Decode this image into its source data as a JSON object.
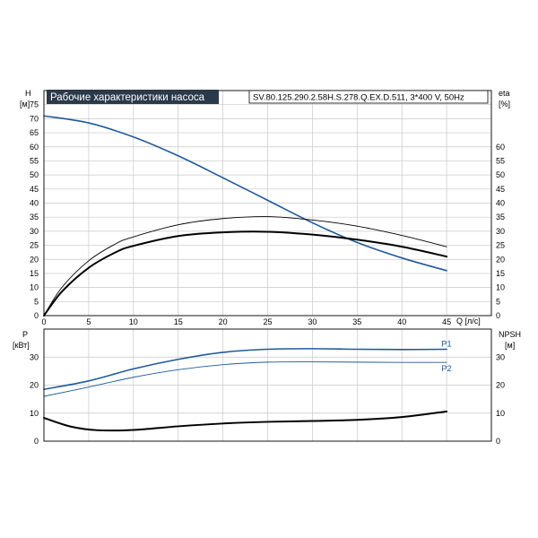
{
  "chart_data": [
    {
      "type": "line",
      "title": "Рабочие характеристики насоса",
      "model": "SV.80.125.290.2.58H.S.278.Q.EX.D.511, 3*400 V, 50Hz",
      "xlabel": "Q [л/с]",
      "ylabel_left": "H",
      "ylabel_left_unit": "[м]",
      "ylabel_right": "eta",
      "ylabel_right_unit": "[%]",
      "xlim": [
        0,
        50
      ],
      "ylim": [
        0,
        80
      ],
      "x_ticks": [
        "0",
        "5",
        "10",
        "15",
        "20",
        "25",
        "30",
        "35",
        "40",
        "45"
      ],
      "y_left_ticks": [
        "0",
        "5",
        "10",
        "15",
        "20",
        "25",
        "30",
        "35",
        "40",
        "45",
        "50",
        "55",
        "60",
        "65",
        "70",
        "75"
      ],
      "y_right_ticks": [
        "0",
        "5",
        "10",
        "15",
        "20",
        "25",
        "30",
        "35",
        "40",
        "45",
        "50",
        "55",
        "60"
      ],
      "grid": true,
      "series": [
        {
          "color": "#1f5a99",
          "width": 1.6,
          "x": [
            0,
            5,
            10,
            15,
            20,
            25,
            30,
            35,
            40,
            45
          ],
          "y": [
            71,
            68.5,
            63.5,
            56.8,
            49,
            41,
            33,
            26,
            20.5,
            16
          ]
        },
        {
          "color": "#000000",
          "width": 2.0,
          "x": [
            0,
            2,
            5,
            8,
            10,
            15,
            20,
            25,
            30,
            35,
            40,
            45
          ],
          "y": [
            0,
            8.5,
            17,
            22.5,
            24.8,
            28.3,
            29.6,
            29.8,
            28.8,
            27,
            24.5,
            21
          ]
        },
        {
          "color": "#000000",
          "width": 0.9,
          "x": [
            0,
            2,
            5,
            8,
            10,
            15,
            20,
            25,
            30,
            35,
            40,
            45
          ],
          "y": [
            0,
            10,
            19.5,
            25.5,
            28,
            32.3,
            34.5,
            35.2,
            34,
            31.8,
            28.5,
            24.5
          ]
        }
      ]
    },
    {
      "type": "line",
      "ylabel_left": "P",
      "ylabel_left_unit": "[кВт]",
      "ylabel_right": "NPSH",
      "ylabel_right_unit": "[м]",
      "xlim": [
        0,
        50
      ],
      "ylim": [
        0,
        40
      ],
      "y_left_ticks": [
        "0",
        "10",
        "20",
        "30"
      ],
      "y_right_ticks": [
        "0",
        "10",
        "20",
        "30"
      ],
      "grid": true,
      "series": [
        {
          "name": "P1",
          "color": "#1f5a99",
          "width": 1.6,
          "x": [
            0,
            5,
            10,
            15,
            20,
            25,
            30,
            35,
            40,
            45
          ],
          "y": [
            18.5,
            21.5,
            25.8,
            29.2,
            31.7,
            32.8,
            33,
            32.8,
            32.7,
            32.8
          ]
        },
        {
          "name": "P2",
          "color": "#1f5a99",
          "width": 0.9,
          "x": [
            0,
            5,
            10,
            15,
            20,
            25,
            30,
            35,
            40,
            45
          ],
          "y": [
            16,
            19.3,
            22.8,
            25.5,
            27.3,
            28.2,
            28.3,
            28.2,
            28.1,
            28.1
          ]
        },
        {
          "color": "#000000",
          "width": 2.0,
          "x": [
            0,
            3,
            6,
            10,
            15,
            20,
            25,
            30,
            35,
            40,
            45
          ],
          "y": [
            8.3,
            5.2,
            3.9,
            4.0,
            5.3,
            6.3,
            6.9,
            7.2,
            7.6,
            8.6,
            10.6
          ]
        }
      ]
    }
  ]
}
